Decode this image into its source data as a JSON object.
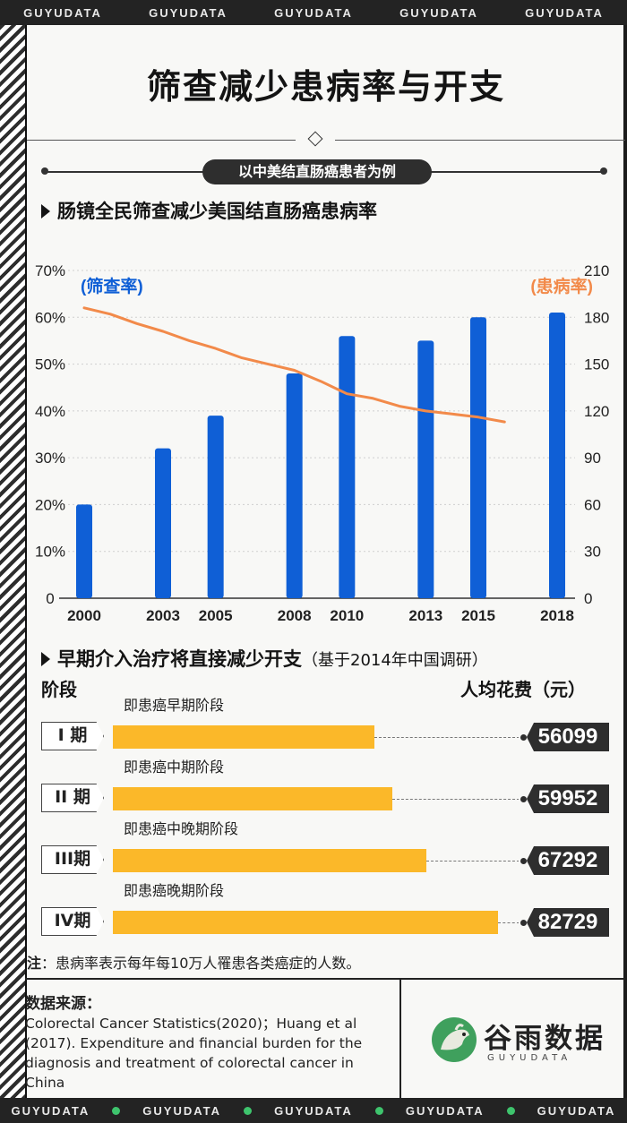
{
  "banner": {
    "text": "GUYUDATA"
  },
  "title": "筛查减少患病率与开支",
  "subtitle": "以中美结直肠癌患者为例",
  "section1": {
    "heading": "肠镜全民筛查减少美国结直肠癌患病率"
  },
  "chart_data": {
    "type": "bar",
    "title": "肠镜全民筛查减少美国结直肠癌患病率",
    "categories": [
      "2000",
      "2003",
      "2005",
      "2008",
      "2010",
      "2013",
      "2015",
      "2018"
    ],
    "series": [
      {
        "name": "(筛查率)",
        "axis": "left",
        "kind": "bar",
        "color": "#0f5fd6",
        "values": [
          20,
          32,
          39,
          48,
          56,
          55,
          60,
          61
        ]
      }
    ],
    "line": {
      "name": "(患病率)",
      "axis": "right",
      "color": "#f28a4a",
      "x": [
        2000,
        2001,
        2002,
        2003,
        2004,
        2005,
        2006,
        2007,
        2008,
        2009,
        2010,
        2011,
        2012,
        2013,
        2014,
        2015,
        2016
      ],
      "values": [
        186,
        182,
        176,
        171,
        165,
        160,
        154,
        150,
        146,
        139,
        131,
        128,
        123,
        120,
        118,
        116,
        113
      ]
    },
    "left_axis": {
      "ticks": [
        "0",
        "10%",
        "20%",
        "30%",
        "40%",
        "50%",
        "60%",
        "70%"
      ],
      "ylim": [
        0,
        70
      ]
    },
    "right_axis": {
      "ticks": [
        "0",
        "30",
        "60",
        "90",
        "120",
        "150",
        "180",
        "210"
      ],
      "ylim": [
        0,
        210
      ]
    },
    "xlim": [
      2000,
      2018
    ]
  },
  "section2": {
    "heading": "早期介入治疗将直接减少开支",
    "note": "（基于2014年中国调研）",
    "col_left": "阶段",
    "col_right": "人均花费（元）",
    "rows": [
      {
        "stage": "I 期",
        "phase": "即患癌早期阶段",
        "value": 56099,
        "value_text": "56099"
      },
      {
        "stage": "II 期",
        "phase": "即患癌中期阶段",
        "value": 59952,
        "value_text": "59952"
      },
      {
        "stage": "III期",
        "phase": "即患癌中晚期阶段",
        "value": 67292,
        "value_text": "67292"
      },
      {
        "stage": "IV期",
        "phase": "即患癌晚期阶段",
        "value": 82729,
        "value_text": "82729"
      }
    ]
  },
  "footnote": {
    "label": "注",
    "text": "：患病率表示每年每10万人罹患各类癌症的人数。"
  },
  "source": {
    "title": "数据来源：",
    "text": "Colorectal Cancer Statistics(2020)；Huang et al (2017). Expenditure and financial burden for the diagnosis and treatment of colorectal cancer in China"
  },
  "logo": {
    "cn": "谷雨数据",
    "en": "GUYUDATA"
  }
}
